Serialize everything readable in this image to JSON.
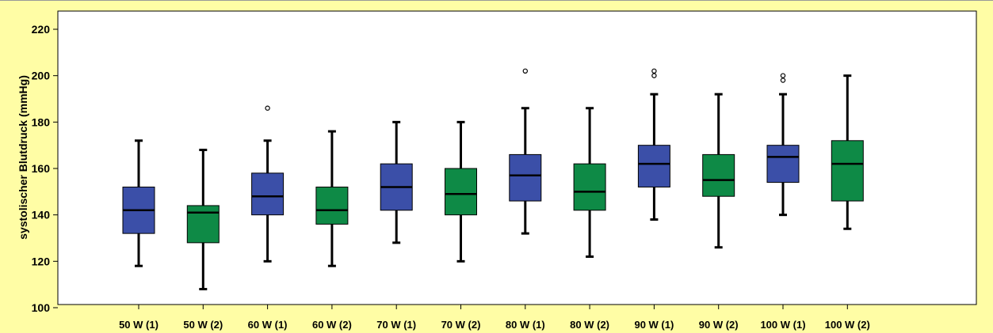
{
  "chart_data": {
    "type": "box",
    "title": "",
    "xlabel": "",
    "ylabel": "systolischer Blutdruck (mmHg)",
    "ylim": [
      100,
      225
    ],
    "yticks": [
      100,
      120,
      140,
      160,
      180,
      200,
      220
    ],
    "ytick_labels": [
      "100",
      "120",
      "140",
      "160",
      "180",
      "200",
      "220"
    ],
    "grid": false,
    "legend": "none",
    "colors": {
      "group1": "#3B4FA8",
      "group2": "#0E8A46",
      "plot_bg": "#FFFFFF",
      "page_bg": "#FFFDA5"
    },
    "categories": [
      "50 W (1)",
      "50 W (2)",
      "60 W (1)",
      "60 W (2)",
      "70 W (1)",
      "70 W (2)",
      "80 W (1)",
      "80 W (2)",
      "90 W (1)",
      "90 W (2)",
      "100 W (1)",
      "100 W (2)"
    ],
    "boxes": [
      {
        "category": "50 W (1)",
        "group": 1,
        "whisker_low": 118,
        "q1": 132,
        "median": 142,
        "q3": 152,
        "whisker_high": 172,
        "outliers": []
      },
      {
        "category": "50 W (2)",
        "group": 2,
        "whisker_low": 108,
        "q1": 128,
        "median": 141,
        "q3": 144,
        "whisker_high": 168,
        "outliers": []
      },
      {
        "category": "60 W (1)",
        "group": 1,
        "whisker_low": 120,
        "q1": 140,
        "median": 148,
        "q3": 158,
        "whisker_high": 172,
        "outliers": [
          186
        ]
      },
      {
        "category": "60 W (2)",
        "group": 2,
        "whisker_low": 118,
        "q1": 136,
        "median": 142,
        "q3": 152,
        "whisker_high": 176,
        "outliers": []
      },
      {
        "category": "70 W (1)",
        "group": 1,
        "whisker_low": 128,
        "q1": 142,
        "median": 152,
        "q3": 162,
        "whisker_high": 180,
        "outliers": []
      },
      {
        "category": "70 W (2)",
        "group": 2,
        "whisker_low": 120,
        "q1": 140,
        "median": 149,
        "q3": 160,
        "whisker_high": 180,
        "outliers": []
      },
      {
        "category": "80 W (1)",
        "group": 1,
        "whisker_low": 132,
        "q1": 146,
        "median": 157,
        "q3": 166,
        "whisker_high": 186,
        "outliers": [
          202
        ]
      },
      {
        "category": "80 W (2)",
        "group": 2,
        "whisker_low": 122,
        "q1": 142,
        "median": 150,
        "q3": 162,
        "whisker_high": 186,
        "outliers": []
      },
      {
        "category": "90 W (1)",
        "group": 1,
        "whisker_low": 138,
        "q1": 152,
        "median": 162,
        "q3": 170,
        "whisker_high": 192,
        "outliers": [
          200,
          202
        ]
      },
      {
        "category": "90 W (2)",
        "group": 2,
        "whisker_low": 126,
        "q1": 148,
        "median": 155,
        "q3": 166,
        "whisker_high": 192,
        "outliers": []
      },
      {
        "category": "100 W (1)",
        "group": 1,
        "whisker_low": 140,
        "q1": 154,
        "median": 165,
        "q3": 170,
        "whisker_high": 192,
        "outliers": [
          198,
          200
        ]
      },
      {
        "category": "100 W (2)",
        "group": 2,
        "whisker_low": 134,
        "q1": 146,
        "median": 162,
        "q3": 172,
        "whisker_high": 200,
        "outliers": []
      }
    ]
  }
}
